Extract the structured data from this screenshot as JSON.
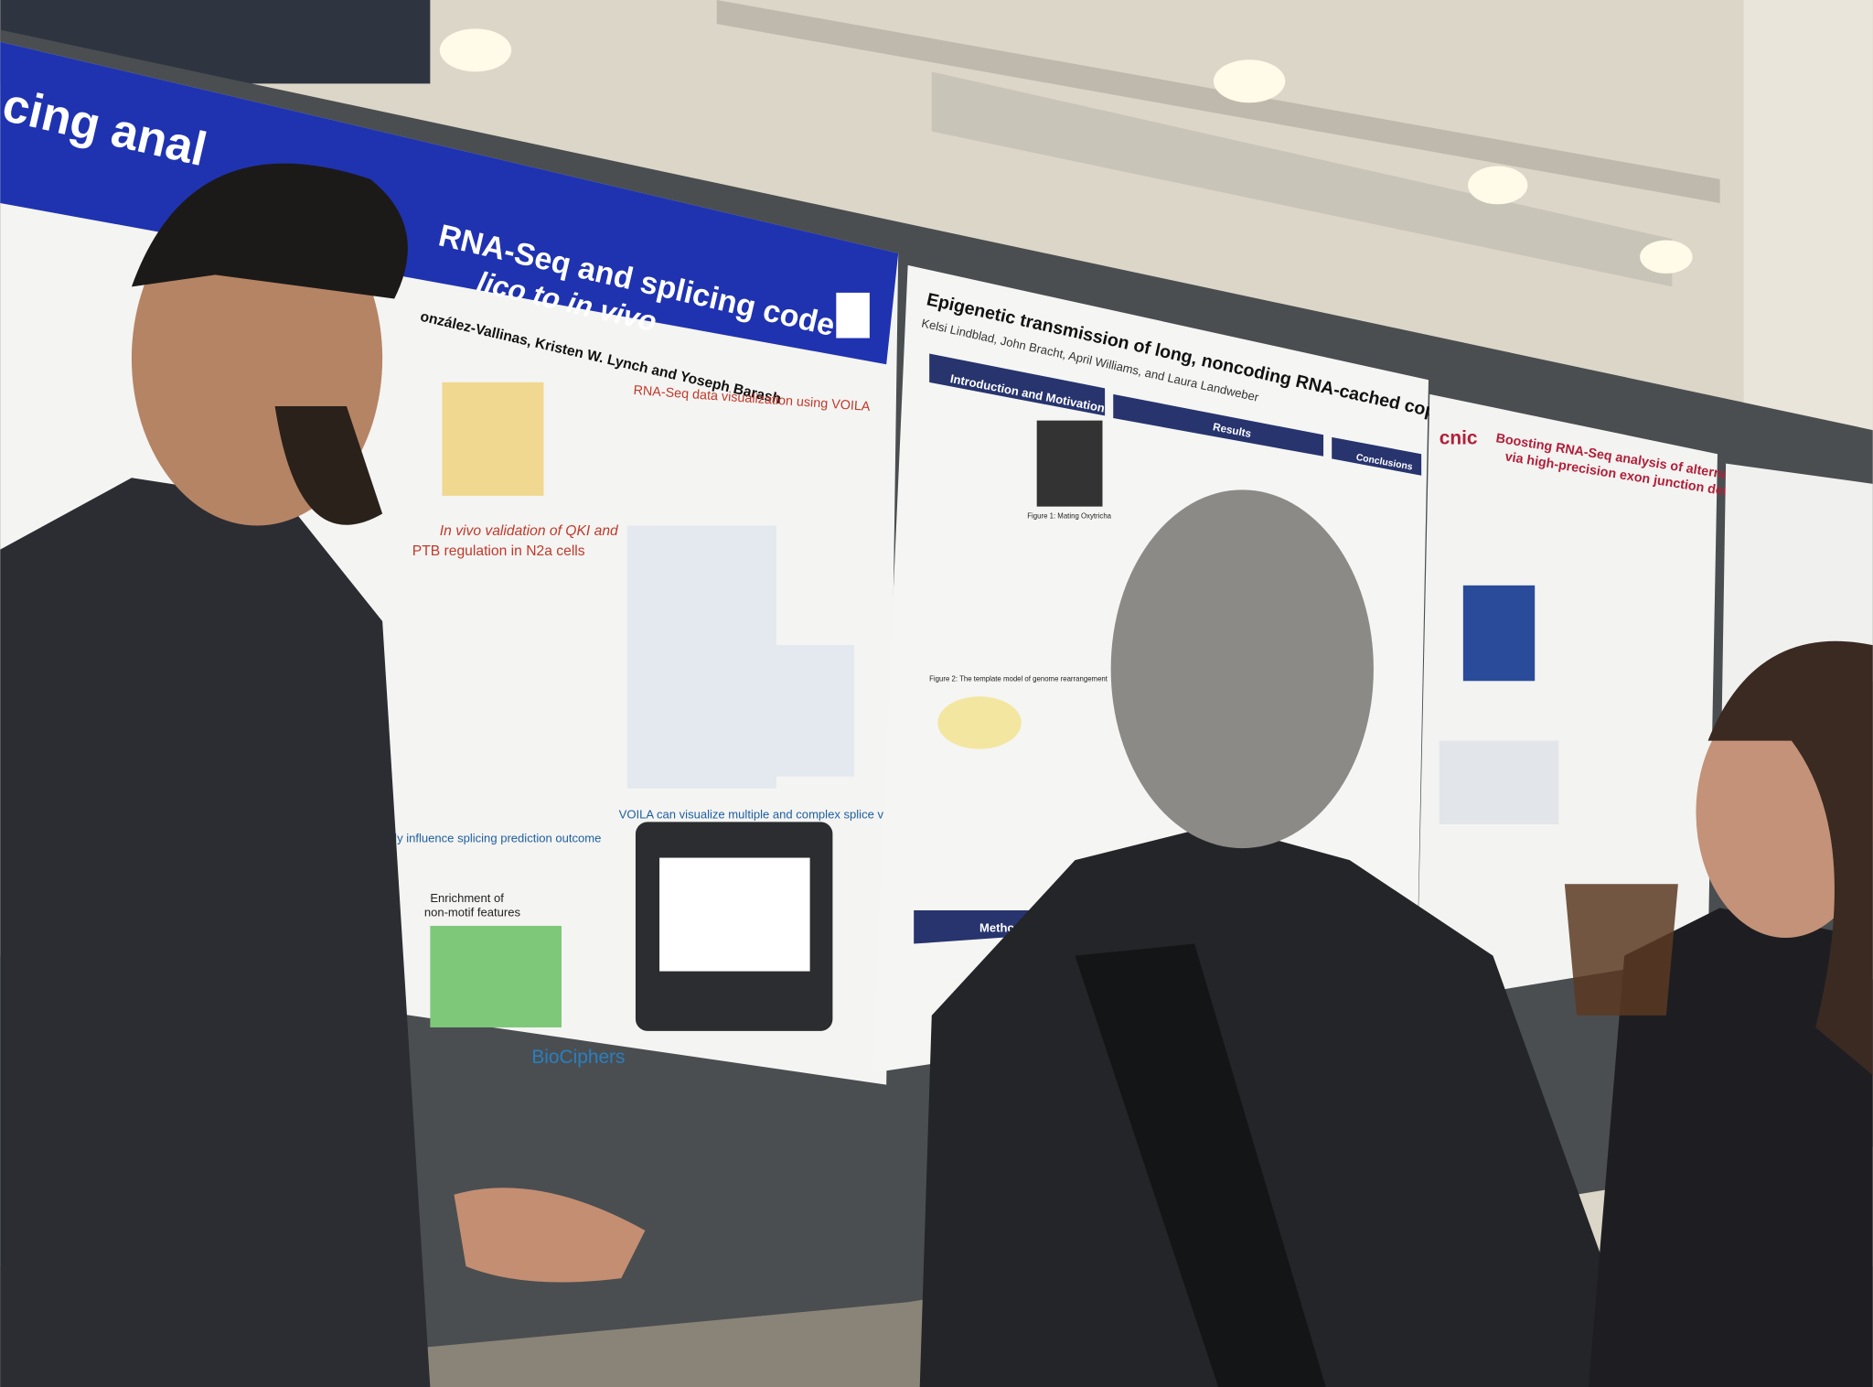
{
  "posters": [
    {
      "title_lines": [
        "cing anal",
        "RNA-Seq and splicing code",
        "lico to in vivo"
      ],
      "authors": "onzález-Vallinas, Kristen W. Lynch and Yoseph Barash",
      "sections": [
        "RNA-Seq data visualization using VOILA",
        "In vivo validation of QKI and",
        "PTB regulation in N2a cells",
        "VOILA can visualize multiple and complex splice variations",
        "Enrichment of",
        "non-motif features",
        "ly influence splicing prediction outcome"
      ],
      "logo": "BioCiphers"
    },
    {
      "title": "Epigenetic transmission of long, noncoding RNA-cached copies of whole chromosome",
      "authors": "Kelsi Lindblad, John Bracht, April Williams, and Laura Landweber",
      "sections": [
        "Introduction and Motivation",
        "Results",
        "Conclusions",
        "Methods"
      ],
      "figure_captions": [
        "Figure 1: Mating Oxytricha",
        "Figure 2: The template model of genome rearrangement"
      ]
    },
    {
      "logo": "cnic",
      "title_lines": [
        "Boosting RNA-Seq analysis of alternative splicing",
        "via high-precision exon junction detection"
      ]
    }
  ]
}
